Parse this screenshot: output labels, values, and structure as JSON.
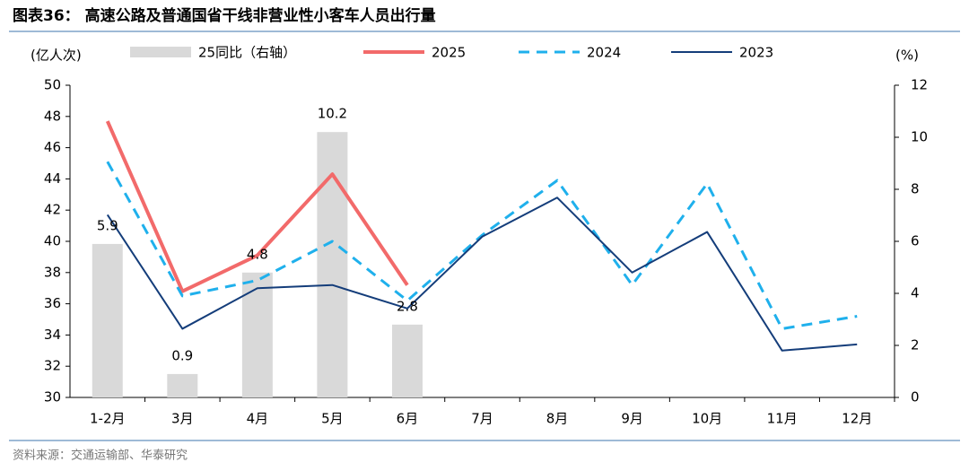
{
  "chart_data": {
    "type": "combo",
    "title": "图表36： 高速公路及普通国省干线非营业性小客车人员出行量",
    "y_label": "(亿人次)",
    "y2_label": "(%)",
    "source": "资料来源：交通运输部、华泰研究",
    "categories": [
      "1-2月",
      "3月",
      "4月",
      "5月",
      "6月",
      "7月",
      "8月",
      "9月",
      "10月",
      "11月",
      "12月"
    ],
    "ylim": [
      30,
      50
    ],
    "yticks": [
      30,
      32,
      34,
      36,
      38,
      40,
      42,
      44,
      46,
      48,
      50
    ],
    "y2lim": [
      0,
      12
    ],
    "y2ticks": [
      0,
      2,
      4,
      6,
      8,
      10,
      12
    ],
    "series": [
      {
        "name": "25同比（右轴）",
        "type": "bar",
        "axis": "y2",
        "color": "#d9d9d9",
        "values": [
          5.9,
          0.9,
          4.8,
          10.2,
          2.8,
          null,
          null,
          null,
          null,
          null,
          null
        ]
      },
      {
        "name": "2025",
        "type": "line",
        "color": "#f26a6a",
        "line_style": "solid",
        "width": 4,
        "values": [
          47.7,
          36.8,
          39.1,
          44.3,
          37.2,
          null,
          null,
          null,
          null,
          null,
          null
        ]
      },
      {
        "name": "2024",
        "type": "line",
        "color": "#1fb0ec",
        "line_style": "dashed",
        "width": 3,
        "values": [
          45.1,
          36.5,
          37.5,
          40.0,
          36.2,
          40.4,
          43.9,
          37.2,
          43.7,
          34.4,
          35.2
        ]
      },
      {
        "name": "2023",
        "type": "line",
        "color": "#143d7a",
        "line_style": "solid",
        "width": 2,
        "values": [
          41.7,
          34.4,
          37.0,
          37.2,
          35.7,
          40.3,
          42.8,
          38.0,
          40.6,
          33.0,
          33.4
        ]
      }
    ]
  }
}
